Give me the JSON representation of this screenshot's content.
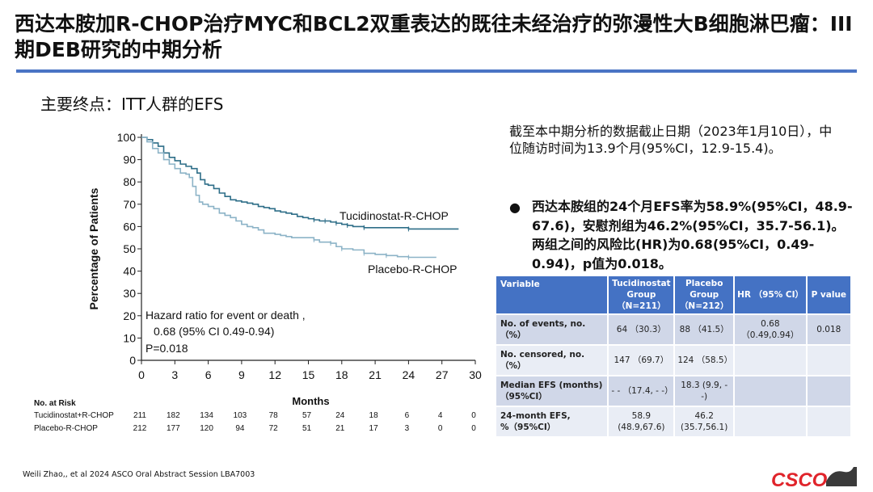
{
  "header": {
    "title": "西达本胺加R-CHOP治疗MYC和BCL2双重表达的既往未经治疗的弥漫性大B细胞淋巴瘤：III期DEB研究的中期分析"
  },
  "subtitle": "主要终点：ITT人群的EFS",
  "summary": {
    "cutoff_text": "截至本中期分析的数据截止日期（2023年1月10日），中位随访时间为13.9个月(95%CI，12.9-15.4)。",
    "bullet_text": "西达本胺组的24个月EFS率为58.9%(95%CI，48.9-67.6)，安慰剂组为46.2%(95%CI，35.7-56.1)。两组之间的风险比(HR)为0.68(95%CI，0.49-0.94)，p值为0.018。"
  },
  "table": {
    "headers": [
      "Variable",
      "Tucidinostat Group （N=211）",
      "Placebo Group （N=212）",
      "HR （95% CI）",
      "P value"
    ],
    "rows": [
      [
        "No. of events, no.（%）",
        "64 （30.3）",
        "88 （41.5）",
        "0.68 （0.49,0.94）",
        "0.018"
      ],
      [
        "No. censored, no.（%）",
        "147 （69.7）",
        "124 （58.5）",
        "",
        ""
      ],
      [
        "Median EFS (months)（95%CI）",
        "- - （17.4, - -）",
        "18.3 (9.9, - -)",
        "",
        ""
      ],
      [
        "24-month EFS, %（95%CI）",
        "58.9 (48.9,67.6)",
        "46.2 (35.7,56.1)",
        "",
        ""
      ]
    ]
  },
  "chart_data": {
    "type": "line",
    "ylabel": "Percentage of Patients",
    "xlabel": "Months",
    "xlim": [
      0,
      30
    ],
    "ylim": [
      0,
      100
    ],
    "x_ticks": [
      0,
      3,
      6,
      9,
      12,
      15,
      18,
      21,
      24,
      27,
      30
    ],
    "y_ticks": [
      0,
      10,
      20,
      30,
      40,
      50,
      60,
      70,
      80,
      90,
      100
    ],
    "series": [
      {
        "name": "Tucidinostat-R-CHOP",
        "color": "#2e6e88",
        "points": [
          [
            0,
            100
          ],
          [
            0.5,
            99
          ],
          [
            1,
            97.5
          ],
          [
            1.5,
            96
          ],
          [
            2,
            93
          ],
          [
            2.5,
            91
          ],
          [
            3,
            89.5
          ],
          [
            3.5,
            88
          ],
          [
            4,
            87
          ],
          [
            4.5,
            86
          ],
          [
            5,
            84
          ],
          [
            5.3,
            81
          ],
          [
            5.7,
            79
          ],
          [
            6,
            78.5
          ],
          [
            6.5,
            77
          ],
          [
            7,
            75
          ],
          [
            7.5,
            73.5
          ],
          [
            8,
            72
          ],
          [
            8.5,
            71.5
          ],
          [
            9,
            71
          ],
          [
            9.5,
            70.5
          ],
          [
            10,
            70
          ],
          [
            10.5,
            69
          ],
          [
            11,
            68.5
          ],
          [
            11.5,
            68
          ],
          [
            12,
            67
          ],
          [
            12.5,
            66.5
          ],
          [
            13,
            66
          ],
          [
            13.5,
            65.5
          ],
          [
            14,
            64.5
          ],
          [
            14.5,
            64
          ],
          [
            15,
            63.5
          ],
          [
            15.5,
            63
          ],
          [
            16,
            62.5
          ],
          [
            16.5,
            62.5
          ],
          [
            17,
            62
          ],
          [
            17.5,
            61.5
          ],
          [
            18,
            61
          ],
          [
            18.5,
            60.5
          ],
          [
            19,
            60
          ],
          [
            20,
            59.5
          ],
          [
            21,
            59.5
          ],
          [
            24,
            58.9
          ],
          [
            28.5,
            58.9
          ]
        ]
      },
      {
        "name": "Placebo-R-CHOP",
        "color": "#8cb3c7",
        "points": [
          [
            0,
            100
          ],
          [
            0.5,
            98
          ],
          [
            1,
            95
          ],
          [
            1.5,
            93
          ],
          [
            2,
            90
          ],
          [
            2.5,
            88
          ],
          [
            3,
            86
          ],
          [
            3.5,
            84
          ],
          [
            4,
            83.5
          ],
          [
            4.3,
            82
          ],
          [
            4.6,
            78
          ],
          [
            4.9,
            74
          ],
          [
            5.2,
            71
          ],
          [
            5.5,
            70
          ],
          [
            6,
            69
          ],
          [
            6.5,
            68
          ],
          [
            7,
            66
          ],
          [
            7.5,
            65
          ],
          [
            8,
            64
          ],
          [
            8.5,
            62.5
          ],
          [
            9,
            61
          ],
          [
            9.5,
            60
          ],
          [
            10,
            59.5
          ],
          [
            10.5,
            58.5
          ],
          [
            11,
            57
          ],
          [
            11.5,
            57
          ],
          [
            12,
            56.5
          ],
          [
            12.5,
            56
          ],
          [
            13,
            55.5
          ],
          [
            13.5,
            55
          ],
          [
            14,
            55
          ],
          [
            15,
            55
          ],
          [
            15.5,
            54
          ],
          [
            16,
            53
          ],
          [
            17,
            52.5
          ],
          [
            17.5,
            51
          ],
          [
            18,
            50
          ],
          [
            19,
            49.5
          ],
          [
            20,
            48
          ],
          [
            21,
            47.5
          ],
          [
            22,
            47
          ],
          [
            23,
            46.5
          ],
          [
            24,
            46.2
          ],
          [
            26.5,
            46.2
          ]
        ]
      }
    ],
    "annotations": [
      "Tucidinostat-R-CHOP",
      "Placebo-R-CHOP",
      "Hazard ratio for event or death ,",
      "0.68 (95% CI 0.49-0.94)",
      "P=0.018"
    ],
    "at_risk": {
      "title": "No. at Risk",
      "rows": [
        {
          "label": "Tucidinostat+R-CHOP",
          "values": [
            211,
            182,
            134,
            103,
            78,
            57,
            24,
            18,
            6,
            4,
            0
          ]
        },
        {
          "label": "Placebo-R-CHOP",
          "values": [
            212,
            177,
            120,
            94,
            72,
            51,
            21,
            17,
            3,
            0,
            0
          ]
        }
      ]
    }
  },
  "footer": "Weili Zhao,, et al 2024 ASCO  Oral Abstract Session LBA7003",
  "logo_text": "CSCO",
  "colors": {
    "accent_rule": "#4a74c4",
    "table_header": "#4472c4",
    "logo_red": "#e0242b"
  }
}
